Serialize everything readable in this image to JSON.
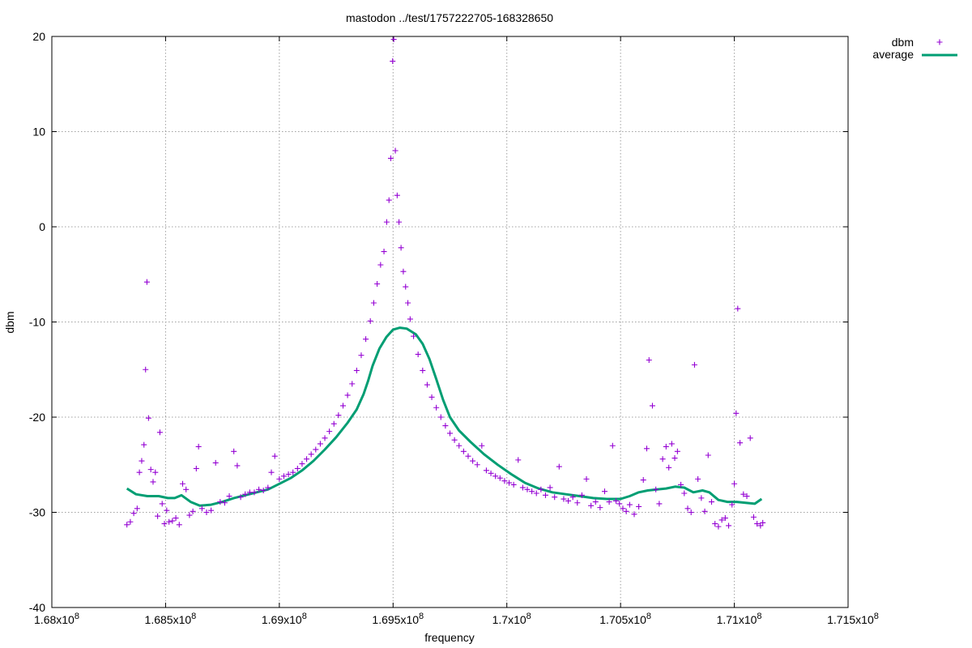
{
  "chart_data": {
    "type": "scatter",
    "title": "mastodon ../test/1757222705-168328650",
    "xlabel": "frequency",
    "ylabel": "dbm",
    "xlim": [
      168000000,
      171500000
    ],
    "ylim": [
      -40,
      20
    ],
    "x_ticks": [
      {
        "value": 168000000,
        "mantissa": "1.68x10",
        "exp": "8"
      },
      {
        "value": 168500000,
        "mantissa": "1.685x10",
        "exp": "8"
      },
      {
        "value": 169000000,
        "mantissa": "1.69x10",
        "exp": "8"
      },
      {
        "value": 169500000,
        "mantissa": "1.695x10",
        "exp": "8"
      },
      {
        "value": 170000000,
        "mantissa": "1.7x10",
        "exp": "8"
      },
      {
        "value": 170500000,
        "mantissa": "1.705x10",
        "exp": "8"
      },
      {
        "value": 171000000,
        "mantissa": "1.71x10",
        "exp": "8"
      },
      {
        "value": 171500000,
        "mantissa": "1.715x10",
        "exp": "8"
      }
    ],
    "y_ticks": [
      {
        "value": 20,
        "label": "20"
      },
      {
        "value": 10,
        "label": "10"
      },
      {
        "value": 0,
        "label": "0"
      },
      {
        "value": -10,
        "label": "-10"
      },
      {
        "value": -20,
        "label": "-20"
      },
      {
        "value": -30,
        "label": "-30"
      },
      {
        "value": -40,
        "label": "-40"
      }
    ],
    "grid": true,
    "legend_position": "outside-top-right",
    "series": [
      {
        "name": "dbm",
        "kind": "points",
        "marker": "+",
        "color": "#9400d3",
        "points": [
          [
            168330000,
            -31.3
          ],
          [
            168345000,
            -31.0
          ],
          [
            168360000,
            -30.1
          ],
          [
            168375000,
            -29.6
          ],
          [
            168385000,
            -25.8
          ],
          [
            168395000,
            -24.6
          ],
          [
            168405000,
            -22.9
          ],
          [
            168412000,
            -15.0
          ],
          [
            168418000,
            -5.8
          ],
          [
            168425000,
            -20.1
          ],
          [
            168435000,
            -25.5
          ],
          [
            168445000,
            -26.8
          ],
          [
            168455000,
            -25.8
          ],
          [
            168465000,
            -30.4
          ],
          [
            168475000,
            -21.6
          ],
          [
            168485000,
            -29.1
          ],
          [
            168495000,
            -31.2
          ],
          [
            168505000,
            -29.8
          ],
          [
            168515000,
            -31.0
          ],
          [
            168530000,
            -30.9
          ],
          [
            168545000,
            -30.6
          ],
          [
            168560000,
            -31.3
          ],
          [
            168575000,
            -27.0
          ],
          [
            168590000,
            -27.6
          ],
          [
            168605000,
            -30.3
          ],
          [
            168620000,
            -29.9
          ],
          [
            168635000,
            -25.4
          ],
          [
            168645000,
            -23.1
          ],
          [
            168660000,
            -29.6
          ],
          [
            168680000,
            -30.0
          ],
          [
            168700000,
            -29.8
          ],
          [
            168720000,
            -24.8
          ],
          [
            168740000,
            -28.9
          ],
          [
            168760000,
            -29.0
          ],
          [
            168780000,
            -28.3
          ],
          [
            168800000,
            -23.6
          ],
          [
            168815000,
            -25.1
          ],
          [
            168830000,
            -28.4
          ],
          [
            168850000,
            -28.1
          ],
          [
            168870000,
            -27.9
          ],
          [
            168890000,
            -27.9
          ],
          [
            168910000,
            -27.6
          ],
          [
            168930000,
            -27.7
          ],
          [
            168950000,
            -27.4
          ],
          [
            168965000,
            -25.8
          ],
          [
            168980000,
            -24.1
          ],
          [
            169000000,
            -26.5
          ],
          [
            169020000,
            -26.2
          ],
          [
            169040000,
            -26.0
          ],
          [
            169060000,
            -25.8
          ],
          [
            169080000,
            -25.4
          ],
          [
            169100000,
            -24.9
          ],
          [
            169120000,
            -24.4
          ],
          [
            169140000,
            -23.9
          ],
          [
            169160000,
            -23.4
          ],
          [
            169180000,
            -22.8
          ],
          [
            169200000,
            -22.2
          ],
          [
            169220000,
            -21.5
          ],
          [
            169240000,
            -20.7
          ],
          [
            169260000,
            -19.8
          ],
          [
            169280000,
            -18.8
          ],
          [
            169300000,
            -17.7
          ],
          [
            169320000,
            -16.5
          ],
          [
            169340000,
            -15.1
          ],
          [
            169360000,
            -13.5
          ],
          [
            169380000,
            -11.8
          ],
          [
            169400000,
            -9.9
          ],
          [
            169415000,
            -8.0
          ],
          [
            169430000,
            -6.0
          ],
          [
            169445000,
            -4.0
          ],
          [
            169460000,
            -2.6
          ],
          [
            169472000,
            0.5
          ],
          [
            169482000,
            2.8
          ],
          [
            169490000,
            7.2
          ],
          [
            169498000,
            17.4
          ],
          [
            169503000,
            19.7
          ],
          [
            169510000,
            8.0
          ],
          [
            169518000,
            3.3
          ],
          [
            169526000,
            0.5
          ],
          [
            169535000,
            -2.2
          ],
          [
            169545000,
            -4.7
          ],
          [
            169555000,
            -6.3
          ],
          [
            169565000,
            -8.0
          ],
          [
            169575000,
            -9.7
          ],
          [
            169590000,
            -11.5
          ],
          [
            169610000,
            -13.4
          ],
          [
            169630000,
            -15.1
          ],
          [
            169650000,
            -16.6
          ],
          [
            169670000,
            -17.9
          ],
          [
            169690000,
            -19.0
          ],
          [
            169710000,
            -20.0
          ],
          [
            169730000,
            -20.9
          ],
          [
            169750000,
            -21.7
          ],
          [
            169770000,
            -22.4
          ],
          [
            169790000,
            -23.0
          ],
          [
            169810000,
            -23.6
          ],
          [
            169830000,
            -24.1
          ],
          [
            169850000,
            -24.6
          ],
          [
            169870000,
            -25.0
          ],
          [
            169890000,
            -23.0
          ],
          [
            169910000,
            -25.6
          ],
          [
            169930000,
            -25.9
          ],
          [
            169950000,
            -26.2
          ],
          [
            169970000,
            -26.4
          ],
          [
            169990000,
            -26.7
          ],
          [
            170010000,
            -26.9
          ],
          [
            170030000,
            -27.1
          ],
          [
            170050000,
            -24.5
          ],
          [
            170070000,
            -27.4
          ],
          [
            170090000,
            -27.6
          ],
          [
            170110000,
            -27.8
          ],
          [
            170130000,
            -28.0
          ],
          [
            170150000,
            -27.6
          ],
          [
            170170000,
            -28.2
          ],
          [
            170190000,
            -27.4
          ],
          [
            170210000,
            -28.4
          ],
          [
            170230000,
            -25.2
          ],
          [
            170250000,
            -28.6
          ],
          [
            170270000,
            -28.8
          ],
          [
            170290000,
            -28.4
          ],
          [
            170310000,
            -29.0
          ],
          [
            170330000,
            -28.2
          ],
          [
            170350000,
            -26.5
          ],
          [
            170370000,
            -29.3
          ],
          [
            170390000,
            -28.9
          ],
          [
            170410000,
            -29.5
          ],
          [
            170430000,
            -27.8
          ],
          [
            170450000,
            -28.9
          ],
          [
            170465000,
            -23.0
          ],
          [
            170480000,
            -28.8
          ],
          [
            170495000,
            -29.1
          ],
          [
            170510000,
            -29.6
          ],
          [
            170525000,
            -29.9
          ],
          [
            170540000,
            -29.2
          ],
          [
            170560000,
            -30.2
          ],
          [
            170580000,
            -29.4
          ],
          [
            170600000,
            -26.6
          ],
          [
            170615000,
            -23.3
          ],
          [
            170625000,
            -14.0
          ],
          [
            170640000,
            -18.8
          ],
          [
            170655000,
            -27.6
          ],
          [
            170670000,
            -29.1
          ],
          [
            170685000,
            -24.4
          ],
          [
            170700000,
            -23.1
          ],
          [
            170712000,
            -25.3
          ],
          [
            170725000,
            -22.8
          ],
          [
            170738000,
            -24.3
          ],
          [
            170750000,
            -23.6
          ],
          [
            170765000,
            -27.1
          ],
          [
            170780000,
            -28.0
          ],
          [
            170795000,
            -29.6
          ],
          [
            170810000,
            -30.0
          ],
          [
            170825000,
            -14.5
          ],
          [
            170840000,
            -26.5
          ],
          [
            170855000,
            -28.5
          ],
          [
            170870000,
            -29.9
          ],
          [
            170885000,
            -24.0
          ],
          [
            170900000,
            -28.9
          ],
          [
            170915000,
            -31.2
          ],
          [
            170930000,
            -31.5
          ],
          [
            170945000,
            -30.8
          ],
          [
            170960000,
            -30.6
          ],
          [
            170975000,
            -31.4
          ],
          [
            170990000,
            -29.2
          ],
          [
            171000000,
            -27.0
          ],
          [
            171008000,
            -19.6
          ],
          [
            171015000,
            -8.6
          ],
          [
            171025000,
            -22.7
          ],
          [
            171040000,
            -28.1
          ],
          [
            171055000,
            -28.3
          ],
          [
            171070000,
            -22.2
          ],
          [
            171085000,
            -30.5
          ],
          [
            171100000,
            -31.2
          ],
          [
            171115000,
            -31.4
          ],
          [
            171125000,
            -31.1
          ]
        ]
      },
      {
        "name": "average",
        "kind": "line",
        "color": "#009e73",
        "points": [
          [
            168330000,
            -27.5
          ],
          [
            168370000,
            -28.1
          ],
          [
            168420000,
            -28.3
          ],
          [
            168470000,
            -28.3
          ],
          [
            168510000,
            -28.5
          ],
          [
            168540000,
            -28.5
          ],
          [
            168570000,
            -28.2
          ],
          [
            168610000,
            -28.9
          ],
          [
            168650000,
            -29.3
          ],
          [
            168700000,
            -29.2
          ],
          [
            168750000,
            -28.9
          ],
          [
            168800000,
            -28.5
          ],
          [
            168850000,
            -28.2
          ],
          [
            168900000,
            -27.9
          ],
          [
            168950000,
            -27.6
          ],
          [
            169000000,
            -27.0
          ],
          [
            169050000,
            -26.4
          ],
          [
            169100000,
            -25.6
          ],
          [
            169150000,
            -24.6
          ],
          [
            169200000,
            -23.4
          ],
          [
            169250000,
            -22.1
          ],
          [
            169300000,
            -20.6
          ],
          [
            169340000,
            -19.2
          ],
          [
            169370000,
            -17.6
          ],
          [
            169390000,
            -16.2
          ],
          [
            169410000,
            -14.6
          ],
          [
            169440000,
            -12.8
          ],
          [
            169470000,
            -11.6
          ],
          [
            169500000,
            -10.8
          ],
          [
            169530000,
            -10.6
          ],
          [
            169560000,
            -10.7
          ],
          [
            169600000,
            -11.3
          ],
          [
            169630000,
            -12.3
          ],
          [
            169660000,
            -13.9
          ],
          [
            169690000,
            -16.0
          ],
          [
            169720000,
            -18.2
          ],
          [
            169750000,
            -20.0
          ],
          [
            169790000,
            -21.4
          ],
          [
            169840000,
            -22.6
          ],
          [
            169900000,
            -23.9
          ],
          [
            169960000,
            -25.0
          ],
          [
            170020000,
            -26.0
          ],
          [
            170080000,
            -26.9
          ],
          [
            170140000,
            -27.5
          ],
          [
            170200000,
            -27.9
          ],
          [
            170260000,
            -28.1
          ],
          [
            170320000,
            -28.3
          ],
          [
            170380000,
            -28.5
          ],
          [
            170440000,
            -28.6
          ],
          [
            170500000,
            -28.6
          ],
          [
            170540000,
            -28.3
          ],
          [
            170580000,
            -27.9
          ],
          [
            170620000,
            -27.7
          ],
          [
            170660000,
            -27.6
          ],
          [
            170700000,
            -27.5
          ],
          [
            170740000,
            -27.3
          ],
          [
            170780000,
            -27.4
          ],
          [
            170820000,
            -27.9
          ],
          [
            170860000,
            -27.7
          ],
          [
            170890000,
            -27.9
          ],
          [
            170930000,
            -28.7
          ],
          [
            170970000,
            -28.9
          ],
          [
            171010000,
            -28.9
          ],
          [
            171050000,
            -29.0
          ],
          [
            171090000,
            -29.1
          ],
          [
            171120000,
            -28.6
          ]
        ]
      }
    ]
  }
}
